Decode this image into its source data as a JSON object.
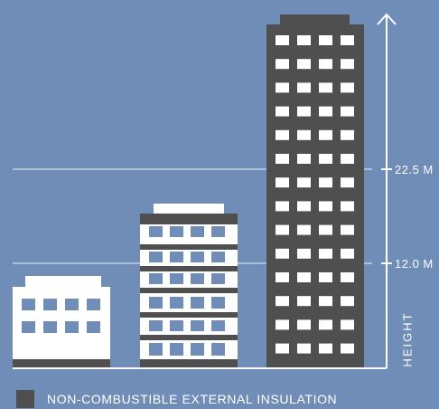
{
  "colors": {
    "background": "#6f8db6",
    "building_dark": "#4f4f4f",
    "building_light": "#ffffff",
    "window_blue": "#6f8db6",
    "guide_line": "#c3d2e4",
    "axis": "#ffffff"
  },
  "axis": {
    "label": "HEIGHT",
    "thresholds": [
      {
        "label": "22.5 M"
      },
      {
        "label": "12.0 M"
      }
    ]
  },
  "legend": {
    "text": "NON-COMBUSTIBLE EXTERNAL INSULATION",
    "swatch_color": "#4f4f4f"
  },
  "buildings": [
    {
      "name": "low-rise-building",
      "storeys": 3,
      "insulation": "none"
    },
    {
      "name": "mid-rise-building",
      "storeys": 7,
      "insulation": "partial"
    },
    {
      "name": "high-rise-building",
      "storeys": 14,
      "insulation": "full"
    }
  ]
}
